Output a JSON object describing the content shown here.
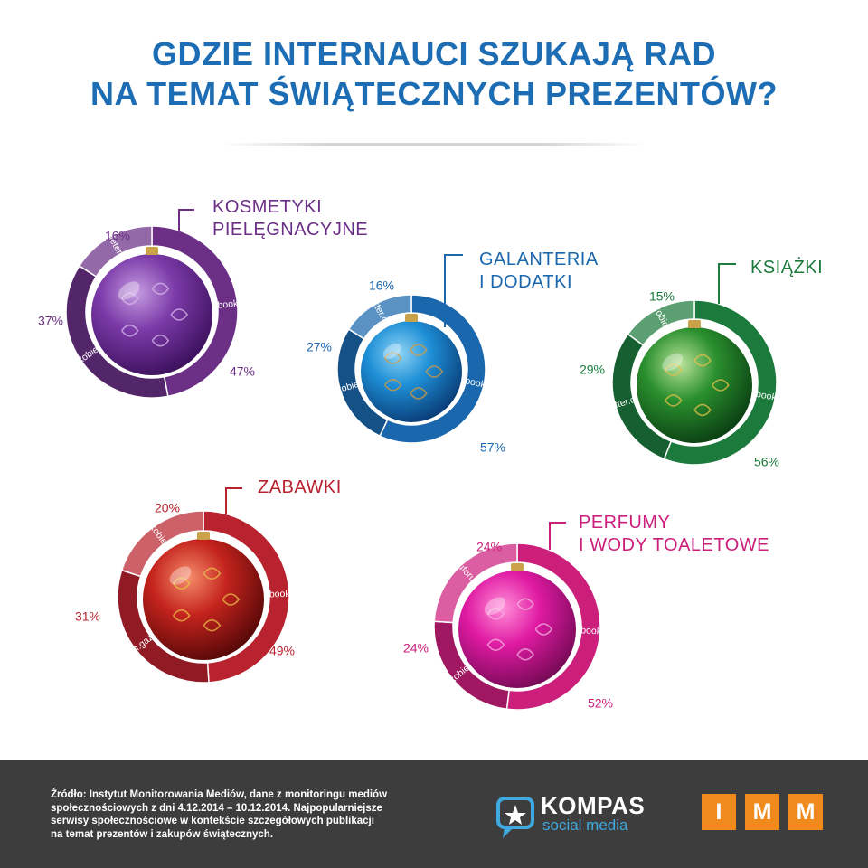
{
  "title": {
    "line1": "GDZIE INTERNAUCI SZUKAJĄ RAD",
    "line2": "NA TEMAT ŚWIĄTECZNYCH PREZENTÓW?"
  },
  "chart_data": [
    {
      "type": "pie",
      "title_lines": [
        "KOSMETYKI",
        "PIELĘGNACYJNE"
      ],
      "color": "#6b2f86",
      "slices": [
        {
          "label": "Facebook.com",
          "value": 47,
          "display": "47%"
        },
        {
          "label": "Netkobiety.pl",
          "value": 37,
          "display": "37%"
        },
        {
          "label": "F.kafeteria.pl",
          "value": 16,
          "display": "16%"
        }
      ]
    },
    {
      "type": "pie",
      "title_lines": [
        "GALANTERIA",
        "I DODATKI"
      ],
      "color": "#1b67ad",
      "slices": [
        {
          "label": "Facebook.com",
          "value": 57,
          "display": "57%"
        },
        {
          "label": "Netkobiety.pl",
          "value": 27,
          "display": "27%"
        },
        {
          "label": "Twitter.com",
          "value": 16,
          "display": "16%"
        }
      ]
    },
    {
      "type": "pie",
      "title_lines": [
        "KSIĄŻKI"
      ],
      "color": "#1c7a3d",
      "slices": [
        {
          "label": "Facebook.com",
          "value": 56,
          "display": "56%"
        },
        {
          "label": "Twitter.com",
          "value": 29,
          "display": "29%"
        },
        {
          "label": "Netkobiety.pl",
          "value": 15,
          "display": "15%"
        }
      ]
    },
    {
      "type": "pie",
      "title_lines": [
        "ZABAWKI"
      ],
      "color": "#b8232f",
      "slices": [
        {
          "label": "Facebook.com",
          "value": 49,
          "display": "49%"
        },
        {
          "label": "Forum.gazeta.pl",
          "value": 31,
          "display": "31%"
        },
        {
          "label": "Netkobiety.pl",
          "value": 20,
          "display": "20%"
        }
      ]
    },
    {
      "type": "pie",
      "title_lines": [
        "PERFUMY",
        "I WODY TOALETOWE"
      ],
      "color": "#cc1f7c",
      "slices": [
        {
          "label": "Facebook.com",
          "value": 52,
          "display": "52%"
        },
        {
          "label": "Netkobiety.pl",
          "value": 24,
          "display": "24%"
        },
        {
          "label": "Perfuforum.pl",
          "value": 24,
          "display": "24%"
        }
      ]
    }
  ],
  "footer": {
    "source_lines": [
      "Źródło: Instytut Monitorowania Mediów, dane z monitoringu mediów",
      "społecznościowych z dni 4.12.2014 – 10.12.2014. Najpopularniejsze",
      "serwisy społecznościowe w kontekście szczegółowych publikacji",
      "na temat prezentów i zakupów świątecznych."
    ],
    "kompas_name": "KOMPAS",
    "kompas_sub": "social media",
    "imm_letters": [
      "I",
      "M",
      "M"
    ]
  }
}
